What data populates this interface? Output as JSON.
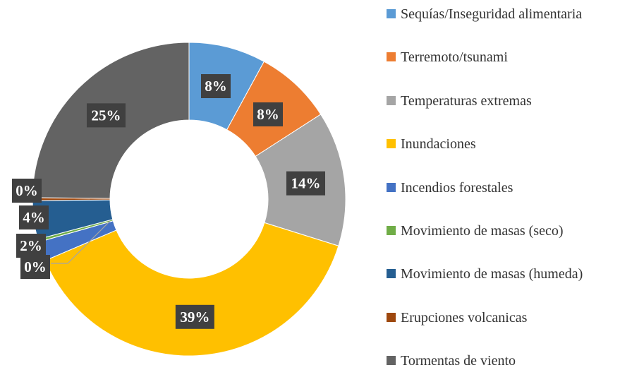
{
  "chart_data": {
    "type": "donut",
    "categories": [
      "Sequías/Inseguridad alimentaria",
      "Terremoto/tsunami",
      "Temperaturas extremas",
      "Inundaciones",
      "Incendios forestales",
      "Movimiento de masas (seco)",
      "Movimiento de masas (humeda)",
      "Erupciones volcanicas",
      "Tormentas de viento"
    ],
    "values": [
      8,
      8,
      14,
      39,
      2,
      0.3,
      4,
      0.3,
      25
    ],
    "value_labels": [
      "8%",
      "8%",
      "14%",
      "39%",
      "2%",
      "0%",
      "4%",
      "0%",
      "25%"
    ],
    "colors": [
      "#5b9bd5",
      "#ed7d31",
      "#a5a5a5",
      "#ffc000",
      "#4472c4",
      "#70ad47",
      "#255e91",
      "#9e480e",
      "#636363"
    ],
    "legend": "right"
  }
}
